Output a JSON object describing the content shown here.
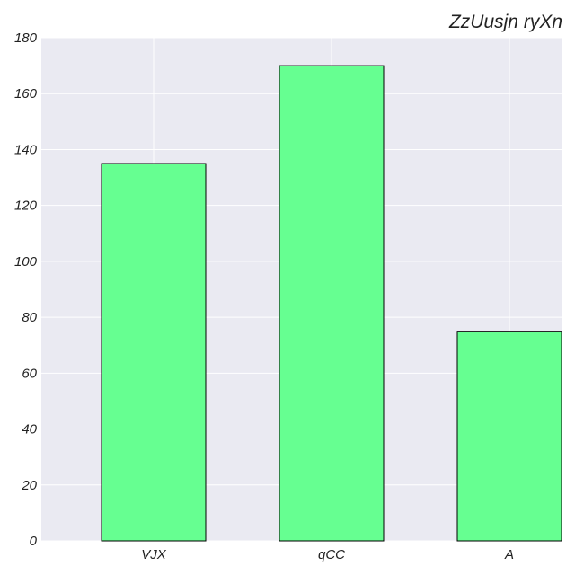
{
  "chart_data": {
    "type": "bar",
    "title": "ZzUusjn ryXn",
    "xlabel": "",
    "ylabel": "",
    "categories": [
      "VJX",
      "qCC",
      "A"
    ],
    "values": [
      135,
      170,
      75
    ],
    "ylim": [
      0,
      180
    ],
    "yticks": [
      "0",
      "20",
      "40",
      "60",
      "80",
      "100",
      "120",
      "140",
      "160",
      "180"
    ],
    "grid": true,
    "bar_color": "#66ff91",
    "plot_background": "#eaeaf2",
    "grid_color": "#ffffff"
  }
}
